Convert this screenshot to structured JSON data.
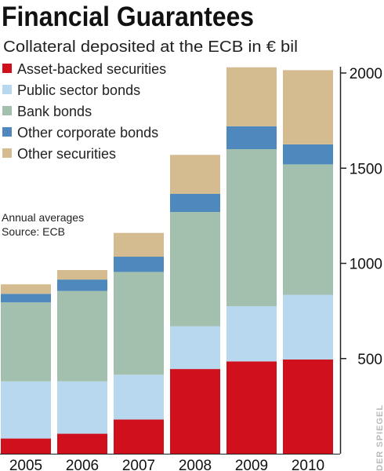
{
  "header": {
    "title": "Financial Guarantees",
    "subtitle": "Collateral deposited at the ECB in € bil"
  },
  "note": {
    "line1": "Annual averages",
    "line2": "Source: ECB"
  },
  "watermark": "DER SPIEGEL",
  "chart_data": {
    "type": "bar",
    "stacked": true,
    "categories": [
      "2005",
      "2006",
      "2007",
      "2008",
      "2009",
      "2010"
    ],
    "ylim": [
      0,
      2000
    ],
    "yticks": [
      500,
      1000,
      1500,
      2000
    ],
    "legend_position": "top-left",
    "series": [
      {
        "name": "Asset-backed securities",
        "color": "#d0101c",
        "values": [
          80,
          105,
          180,
          445,
          485,
          495
        ]
      },
      {
        "name": "Public sector bonds",
        "color": "#b7d8ee",
        "values": [
          300,
          275,
          235,
          225,
          290,
          340
        ]
      },
      {
        "name": "Bank bonds",
        "color": "#a3c0ae",
        "values": [
          415,
          475,
          540,
          600,
          825,
          685
        ]
      },
      {
        "name": "Other corporate bonds",
        "color": "#4f88bd",
        "values": [
          45,
          60,
          80,
          95,
          120,
          105
        ]
      },
      {
        "name": "Other securities",
        "color": "#d4bc90",
        "values": [
          50,
          50,
          125,
          205,
          310,
          390
        ]
      }
    ]
  }
}
